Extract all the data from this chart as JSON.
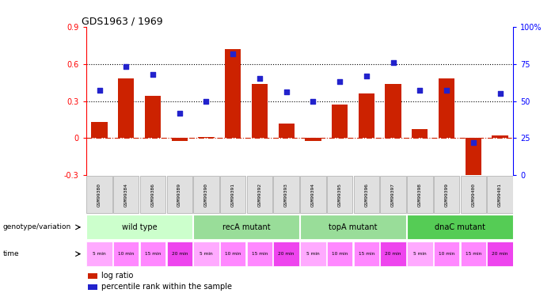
{
  "title": "GDS1963 / 1969",
  "samples": [
    "GSM99380",
    "GSM99384",
    "GSM99386",
    "GSM99389",
    "GSM99390",
    "GSM99391",
    "GSM99392",
    "GSM99393",
    "GSM99394",
    "GSM99395",
    "GSM99396",
    "GSM99397",
    "GSM99398",
    "GSM99399",
    "GSM99400",
    "GSM99401"
  ],
  "log_ratio": [
    0.13,
    0.48,
    0.34,
    -0.02,
    0.01,
    0.72,
    0.44,
    0.12,
    -0.02,
    0.27,
    0.36,
    0.44,
    0.07,
    0.48,
    -0.35,
    0.02
  ],
  "percentile_rank": [
    57,
    73,
    68,
    42,
    50,
    82,
    65,
    56,
    50,
    63,
    67,
    76,
    57,
    57,
    22,
    55
  ],
  "groups_info": [
    {
      "label": "wild type",
      "start": 0,
      "end": 3,
      "color": "#ccffcc"
    },
    {
      "label": "recA mutant",
      "start": 4,
      "end": 7,
      "color": "#99dd99"
    },
    {
      "label": "topA mutant",
      "start": 8,
      "end": 11,
      "color": "#99dd99"
    },
    {
      "label": "dnaC mutant",
      "start": 12,
      "end": 15,
      "color": "#55cc55"
    }
  ],
  "times": [
    "5 min",
    "10 min",
    "15 min",
    "20 min",
    "5 min",
    "10 min",
    "15 min",
    "20 min",
    "5 min",
    "10 min",
    "15 min",
    "20 min",
    "5 min",
    "10 min",
    "15 min",
    "20 min"
  ],
  "time_colors": [
    "#ffaaff",
    "#ff88ff",
    "#ff88ff",
    "#ee44ee",
    "#ffaaff",
    "#ff88ff",
    "#ff88ff",
    "#ee44ee",
    "#ffaaff",
    "#ff88ff",
    "#ff88ff",
    "#ee44ee",
    "#ffaaff",
    "#ff88ff",
    "#ff88ff",
    "#ee44ee"
  ],
  "bar_color": "#cc2200",
  "dot_color": "#2222cc",
  "ylim_left": [
    -0.3,
    0.9
  ],
  "ylim_right": [
    0,
    100
  ],
  "dotted_lines": [
    0.3,
    0.6
  ],
  "left_ticks": [
    -0.3,
    0.0,
    0.3,
    0.6,
    0.9
  ],
  "left_tick_labels": [
    "-0.3",
    "0",
    "0.3",
    "0.6",
    "0.9"
  ],
  "right_ticks": [
    0,
    25,
    50,
    75,
    100
  ],
  "right_tick_labels": [
    "0",
    "25",
    "50",
    "75",
    "100%"
  ],
  "legend_items": [
    {
      "label": "log ratio",
      "color": "#cc2200"
    },
    {
      "label": "percentile rank within the sample",
      "color": "#2222cc"
    }
  ]
}
